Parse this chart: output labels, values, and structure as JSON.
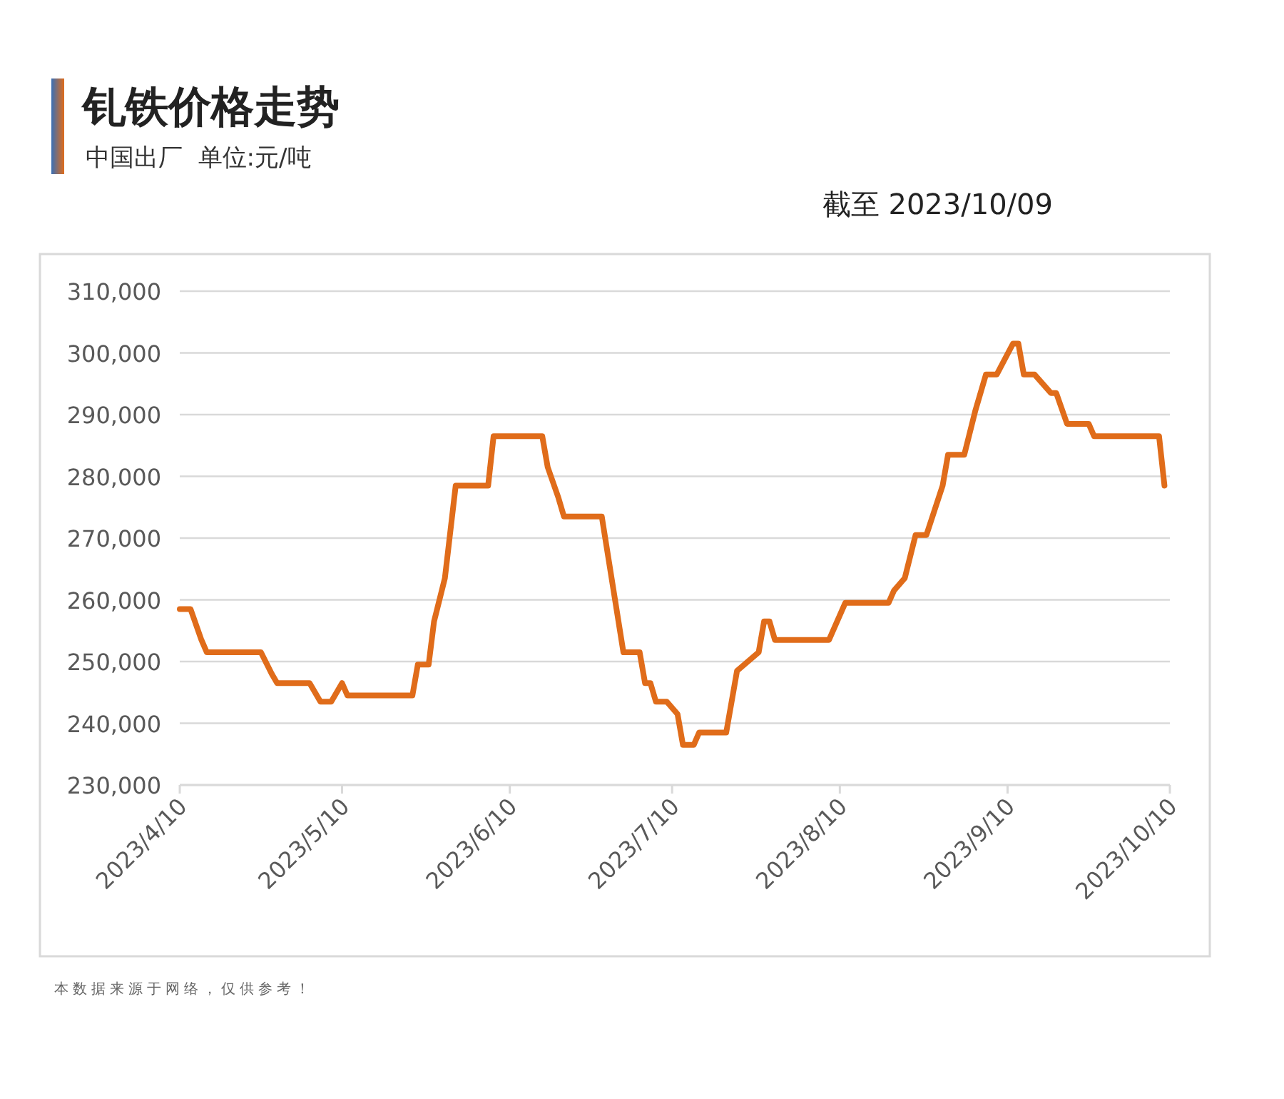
{
  "chart_data": {
    "type": "line",
    "title": "钆铁价格走势",
    "subtitle": "中国出厂  单位:元/吨",
    "annotations": [
      "截至 2023/10/09",
      "本数据来源于网络，仅供参考！"
    ],
    "x": [
      "2023-04-10",
      "2023-04-12",
      "2023-04-14",
      "2023-04-15",
      "2023-04-25",
      "2023-04-27",
      "2023-04-28",
      "2023-05-04",
      "2023-05-06",
      "2023-05-08",
      "2023-05-10",
      "2023-05-11",
      "2023-05-23",
      "2023-05-24",
      "2023-05-26",
      "2023-05-27",
      "2023-05-29",
      "2023-05-31",
      "2023-06-06",
      "2023-06-07",
      "2023-06-16",
      "2023-06-17",
      "2023-06-19",
      "2023-06-20",
      "2023-06-27",
      "2023-07-01",
      "2023-07-04",
      "2023-07-05",
      "2023-07-06",
      "2023-07-07",
      "2023-07-09",
      "2023-07-11",
      "2023-07-12",
      "2023-07-14",
      "2023-07-15",
      "2023-07-20",
      "2023-07-22",
      "2023-07-26",
      "2023-07-27",
      "2023-07-28",
      "2023-07-29",
      "2023-08-08",
      "2023-08-11",
      "2023-08-19",
      "2023-08-20",
      "2023-08-22",
      "2023-08-24",
      "2023-08-26",
      "2023-08-29",
      "2023-08-30",
      "2023-09-02",
      "2023-09-04",
      "2023-09-06",
      "2023-09-08",
      "2023-09-11",
      "2023-09-12",
      "2023-09-13",
      "2023-09-15",
      "2023-09-18",
      "2023-09-19",
      "2023-09-21",
      "2023-09-25",
      "2023-09-26",
      "2023-10-08",
      "2023-10-09"
    ],
    "series": [
      {
        "color": "#e06c1a",
        "values": [
          258500,
          258500,
          253500,
          251500,
          251500,
          248000,
          246500,
          246500,
          243500,
          243500,
          246500,
          244500,
          244500,
          249500,
          249500,
          256500,
          263500,
          278500,
          278500,
          286500,
          286500,
          281500,
          276500,
          273500,
          273500,
          251500,
          251500,
          246500,
          246500,
          243500,
          243500,
          241500,
          236500,
          236500,
          238500,
          238500,
          248500,
          251500,
          256500,
          256500,
          253500,
          253500,
          259500,
          259500,
          261500,
          263500,
          270500,
          270500,
          278500,
          283500,
          283500,
          290500,
          296500,
          296500,
          301500,
          301500,
          296500,
          296500,
          293500,
          293500,
          288500,
          288500,
          286500,
          286500,
          278500
        ]
      }
    ],
    "xlim": [
      "2023-04-10",
      "2023-10-10"
    ],
    "xticks": [
      {
        "value": "2023-04-10",
        "label": "2023/4/10"
      },
      {
        "value": "2023-05-10",
        "label": "2023/5/10"
      },
      {
        "value": "2023-06-10",
        "label": "2023/6/10"
      },
      {
        "value": "2023-07-10",
        "label": "2023/7/10"
      },
      {
        "value": "2023-08-10",
        "label": "2023/8/10"
      },
      {
        "value": "2023-09-10",
        "label": "2023/9/10"
      },
      {
        "value": "2023-10-10",
        "label": "2023/10/10"
      }
    ],
    "ylim": [
      230000,
      310000
    ],
    "yticks": [
      {
        "value": 230000,
        "label": "230,000"
      },
      {
        "value": 240000,
        "label": "240,000"
      },
      {
        "value": 250000,
        "label": "250,000"
      },
      {
        "value": 260000,
        "label": "260,000"
      },
      {
        "value": 270000,
        "label": "270,000"
      },
      {
        "value": 280000,
        "label": "280,000"
      },
      {
        "value": 290000,
        "label": "290,000"
      },
      {
        "value": 300000,
        "label": "300,000"
      },
      {
        "value": 310000,
        "label": "310,000"
      }
    ],
    "grid": "y"
  }
}
